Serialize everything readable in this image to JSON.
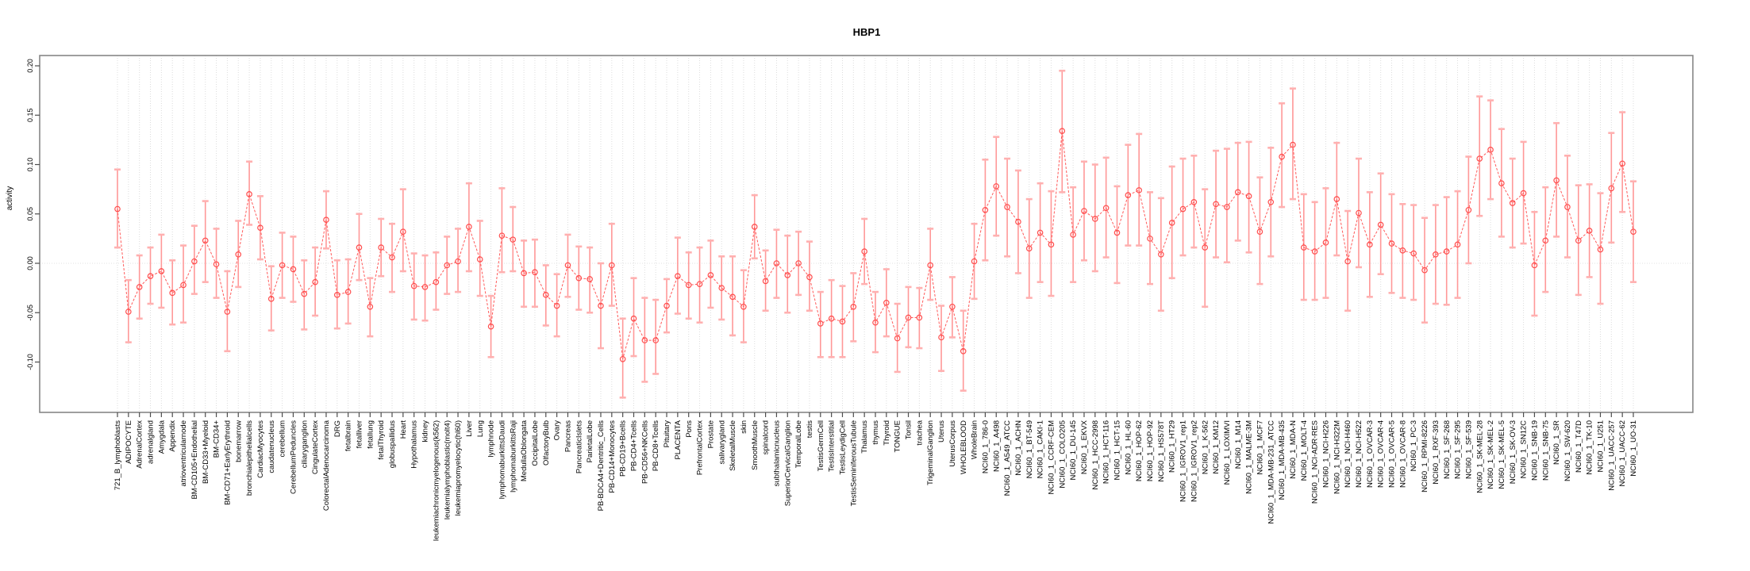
{
  "title": "HBP1",
  "ylabel": "activity",
  "colors": {
    "frame": "#878787",
    "gridline": "#dcdcdc",
    "zero_line": "#e2e2e2",
    "series_line": "#ff5a5a",
    "marker_stroke": "#ff4d4d",
    "error_bar": "#ff9898",
    "error_cap": "#ffb0b0",
    "tick": "#4d4d4d",
    "text": "#000000"
  },
  "chart_data": {
    "type": "line",
    "title": "HBP1",
    "xlabel": "",
    "ylabel": "activity",
    "ylim": [
      -0.151,
      0.21
    ],
    "grid": "vertical dashed gridline per category; dotted horizontal line at 0",
    "legend_position": "none",
    "marker": "open-circle",
    "line_style": "dashed",
    "error_bars": true,
    "yticks": [
      {
        "label": "0.20",
        "value": 0.2
      },
      {
        "label": "0.15",
        "value": 0.15
      },
      {
        "label": "0.10",
        "value": 0.1
      },
      {
        "label": "0.05",
        "value": 0.05
      },
      {
        "label": "0.00",
        "value": 0.0
      },
      {
        "label": "-0.05",
        "value": -0.05
      },
      {
        "label": "-0.10",
        "value": -0.1
      }
    ],
    "categories": [
      "721_B_lymphoblasts",
      "ADIPOCYTE",
      "AdrenalCortex",
      "adrenalgland",
      "Amygdala",
      "Appendix",
      "atrioventricularnode",
      "BM-CD105+Endothelial",
      "BM-CD33+Myeloid",
      "BM-CD34+",
      "BM-CD71+EarlyErythroid",
      "bonemarrow",
      "bronchialepithelialcells",
      "CardiacMyocytes",
      "caudatenucleus",
      "cerebellum",
      "CerebellumPeduncles",
      "ciliaryganglion",
      "CingulateCortex",
      "ColorectalAdenocarcinoma",
      "DRG",
      "fetalbrain",
      "fetalliver",
      "fetallung",
      "fetalThyroid",
      "globuspallidus",
      "Heart",
      "Hypothalamus",
      "kidney",
      "leukemiachronicmyelogenous(k562)",
      "leukemialymphoblastic(molt4)",
      "leukemiapromyelocytic(hl60)",
      "Liver",
      "Lung",
      "lymphnode",
      "lymphomaburkittsDaudi",
      "lymphomaburkittsRaji",
      "MedullaOblongata",
      "OccipitalLobe",
      "OlfactoryBulb",
      "Ovary",
      "Pancreas",
      "PancreaticIslets",
      "ParietalLobe",
      "PB-BDCA4+Dentritic_Cells",
      "PB-CD14+Monocytes",
      "PB-CD19+Bcells",
      "PB-CD4+Tcells",
      "PB-CD56+NKCells",
      "PB-CD8+Tcells",
      "Pituitary",
      "PLACENTA",
      "Pons",
      "PrefrontalCortex",
      "Prostate",
      "salivarygland",
      "SkeletalMuscle",
      "skin",
      "SmoothMuscle",
      "spinalcord",
      "subthalamicnucleus",
      "SuperiorCervicalGanglion",
      "TemporalLobe",
      "testis",
      "TestisGermCell",
      "TestisInterstitial",
      "TestisLeydigCell",
      "TestisSeminiferousTubule",
      "Thalamus",
      "thymus",
      "Thyroid",
      "TONGUE",
      "Tonsil",
      "trachea",
      "TrigeminalGanglion",
      "Uterus",
      "UterusCorpus",
      "WHOLEBLOOD",
      "WholeBrain",
      "NCI60_1_786-0",
      "NCI60_1_A498",
      "NCI60_1_A549_ATCC",
      "NCI60_1_ACHN",
      "NCI60_1_BT-549",
      "NCI60_1_CAKI-1",
      "NCI60_1_CCRF-CEM",
      "NCI60_1_COLO205",
      "NCI60_1_DU-145",
      "NCI60_1_EKVX",
      "NCI60_1_HCC-2998",
      "NCI60_1_HCT-116",
      "NCI60_1_HCT-15",
      "NCI60_1_HL-60",
      "NCI60_1_HOP-62",
      "NCI60_1_HOP-92",
      "NCI60_1_HS578T",
      "NCI60_1_HT29",
      "NCI60_1_IGROV1_rep1",
      "NCI60_1_IGROV1_rep2",
      "NCI60_1_K-562",
      "NCI60_1_KM12",
      "NCI60_1_LOXIMVI",
      "NCI60_1_M14",
      "NCI60_1_MALME-3M",
      "NCI60_1_MCF7",
      "NCI60_1_MDA-MB-231_ATCC",
      "NCI60_1_MDA-MB-435",
      "NCI60_1_MDA-N",
      "NCI60_1_MOLT-4",
      "NCI60_1_NCI-ADR-RES",
      "NCI60_1_NCI-H226",
      "NCI60_1_NCI-H322M",
      "NCI60_1_NCI-H460",
      "NCI60_1_NCI-H522",
      "NCI60_1_OVCAR-3",
      "NCI60_1_OVCAR-4",
      "NCI60_1_OVCAR-5",
      "NCI60_1_OVCAR-8",
      "NCI60_1_PC-3",
      "NCI60_1_RPMI-8226",
      "NCI60_1_RXF-393",
      "NCI60_1_SF-268",
      "NCI60_1_SF-295",
      "NCI60_1_SF-539",
      "NCI60_1_SK-MEL-28",
      "NCI60_1_SK-MEL-2",
      "NCI60_1_SK-MEL-5",
      "NCI60_1_SK-OV-3",
      "NCI60_1_SN12C",
      "NCI60_1_SNB-19",
      "NCI60_1_SNB-75",
      "NCI60_1_SR",
      "NCI60_1_SW-620",
      "NCI60_1_T47D",
      "NCI60_1_TK-10",
      "NCI60_1_U251",
      "NCI60_1_UACC-257",
      "NCI60_1_UACC-62",
      "NCI60_1_UO-31"
    ],
    "values": [
      0.055,
      -0.049,
      -0.024,
      -0.013,
      -0.008,
      -0.03,
      -0.022,
      0.002,
      0.023,
      -0.001,
      -0.049,
      0.009,
      0.07,
      0.036,
      -0.036,
      -0.002,
      -0.006,
      -0.031,
      -0.019,
      0.044,
      -0.032,
      -0.029,
      0.016,
      -0.044,
      0.016,
      0.006,
      0.032,
      -0.023,
      -0.024,
      -0.019,
      -0.002,
      0.002,
      0.037,
      0.004,
      -0.064,
      0.028,
      0.024,
      -0.01,
      -0.009,
      -0.032,
      -0.043,
      -0.002,
      -0.015,
      -0.016,
      -0.043,
      -0.002,
      -0.097,
      -0.056,
      -0.078,
      -0.078,
      -0.043,
      -0.013,
      -0.022,
      -0.021,
      -0.012,
      -0.025,
      -0.034,
      -0.044,
      0.037,
      -0.018,
      0.0,
      -0.012,
      0.0,
      -0.014,
      -0.061,
      -0.056,
      -0.059,
      -0.044,
      0.012,
      -0.06,
      -0.04,
      -0.076,
      -0.055,
      -0.055,
      -0.002,
      -0.075,
      -0.044,
      -0.089,
      0.002,
      0.054,
      0.078,
      0.057,
      0.042,
      0.015,
      0.031,
      0.019,
      0.134,
      0.029,
      0.053,
      0.045,
      0.056,
      0.031,
      0.069,
      0.074,
      0.025,
      0.009,
      0.041,
      0.055,
      0.062,
      0.016,
      0.06,
      0.057,
      0.072,
      0.068,
      0.032,
      0.062,
      0.108,
      0.12,
      0.016,
      0.012,
      0.021,
      0.065,
      0.002,
      0.051,
      0.019,
      0.039,
      0.02,
      0.013,
      0.01,
      -0.007,
      0.009,
      0.012,
      0.019,
      0.054,
      0.106,
      0.115,
      0.081,
      0.061,
      0.071,
      -0.002,
      0.023,
      0.084,
      0.057,
      0.023,
      0.033,
      0.014,
      0.076,
      0.101,
      0.032
    ],
    "err_lo": [
      0.016,
      -0.08,
      -0.056,
      -0.041,
      -0.045,
      -0.062,
      -0.06,
      -0.031,
      -0.019,
      -0.035,
      -0.089,
      -0.024,
      0.039,
      0.004,
      -0.068,
      -0.035,
      -0.039,
      -0.067,
      -0.053,
      0.015,
      -0.066,
      -0.061,
      -0.017,
      -0.074,
      -0.013,
      -0.029,
      -0.008,
      -0.057,
      -0.058,
      -0.047,
      -0.031,
      -0.029,
      -0.008,
      -0.033,
      -0.095,
      -0.009,
      -0.008,
      -0.044,
      -0.044,
      -0.063,
      -0.074,
      -0.034,
      -0.047,
      -0.05,
      -0.086,
      -0.043,
      -0.136,
      -0.094,
      -0.12,
      -0.112,
      -0.07,
      -0.051,
      -0.056,
      -0.06,
      -0.045,
      -0.057,
      -0.073,
      -0.08,
      0.005,
      -0.048,
      -0.035,
      -0.05,
      -0.032,
      -0.048,
      -0.095,
      -0.095,
      -0.095,
      -0.079,
      -0.021,
      -0.09,
      -0.074,
      -0.11,
      -0.085,
      -0.086,
      -0.037,
      -0.109,
      -0.075,
      -0.129,
      -0.036,
      0.003,
      0.028,
      0.007,
      -0.01,
      -0.035,
      -0.019,
      -0.033,
      0.072,
      -0.019,
      0.003,
      -0.008,
      0.006,
      -0.02,
      0.018,
      0.018,
      -0.021,
      -0.048,
      -0.015,
      0.008,
      0.016,
      -0.044,
      0.006,
      0.001,
      0.023,
      0.011,
      -0.021,
      0.007,
      0.057,
      0.065,
      -0.037,
      -0.037,
      -0.035,
      0.008,
      -0.048,
      -0.004,
      -0.034,
      -0.011,
      -0.03,
      -0.035,
      -0.037,
      -0.06,
      -0.041,
      -0.042,
      -0.035,
      0.0,
      0.048,
      0.065,
      0.027,
      0.016,
      0.02,
      -0.053,
      -0.029,
      0.027,
      0.006,
      -0.032,
      -0.014,
      -0.041,
      0.021,
      0.052,
      -0.019
    ],
    "err_hi": [
      0.095,
      -0.017,
      0.008,
      0.016,
      0.029,
      0.003,
      0.018,
      0.038,
      0.063,
      0.035,
      -0.008,
      0.043,
      0.103,
      0.068,
      -0.003,
      0.031,
      0.027,
      0.003,
      0.016,
      0.073,
      0.003,
      0.004,
      0.05,
      -0.015,
      0.045,
      0.04,
      0.075,
      0.01,
      0.008,
      0.011,
      0.027,
      0.035,
      0.081,
      0.043,
      -0.033,
      0.076,
      0.057,
      0.023,
      0.024,
      -0.002,
      -0.011,
      0.029,
      0.017,
      0.016,
      0.0,
      0.04,
      -0.056,
      -0.015,
      -0.035,
      -0.037,
      -0.016,
      0.026,
      0.011,
      0.016,
      0.023,
      0.007,
      0.007,
      -0.007,
      0.069,
      0.013,
      0.034,
      0.028,
      0.032,
      0.022,
      -0.029,
      -0.017,
      -0.023,
      -0.01,
      0.045,
      -0.029,
      -0.006,
      -0.041,
      -0.024,
      -0.025,
      0.035,
      -0.043,
      -0.014,
      -0.048,
      0.04,
      0.105,
      0.128,
      0.106,
      0.094,
      0.065,
      0.081,
      0.073,
      0.195,
      0.077,
      0.103,
      0.1,
      0.107,
      0.078,
      0.12,
      0.131,
      0.072,
      0.066,
      0.098,
      0.106,
      0.109,
      0.075,
      0.114,
      0.116,
      0.122,
      0.123,
      0.087,
      0.117,
      0.162,
      0.177,
      0.07,
      0.062,
      0.076,
      0.122,
      0.053,
      0.106,
      0.072,
      0.091,
      0.07,
      0.06,
      0.059,
      0.046,
      0.059,
      0.067,
      0.073,
      0.108,
      0.169,
      0.165,
      0.136,
      0.106,
      0.123,
      0.052,
      0.077,
      0.142,
      0.109,
      0.079,
      0.08,
      0.071,
      0.132,
      0.153,
      0.083
    ]
  }
}
